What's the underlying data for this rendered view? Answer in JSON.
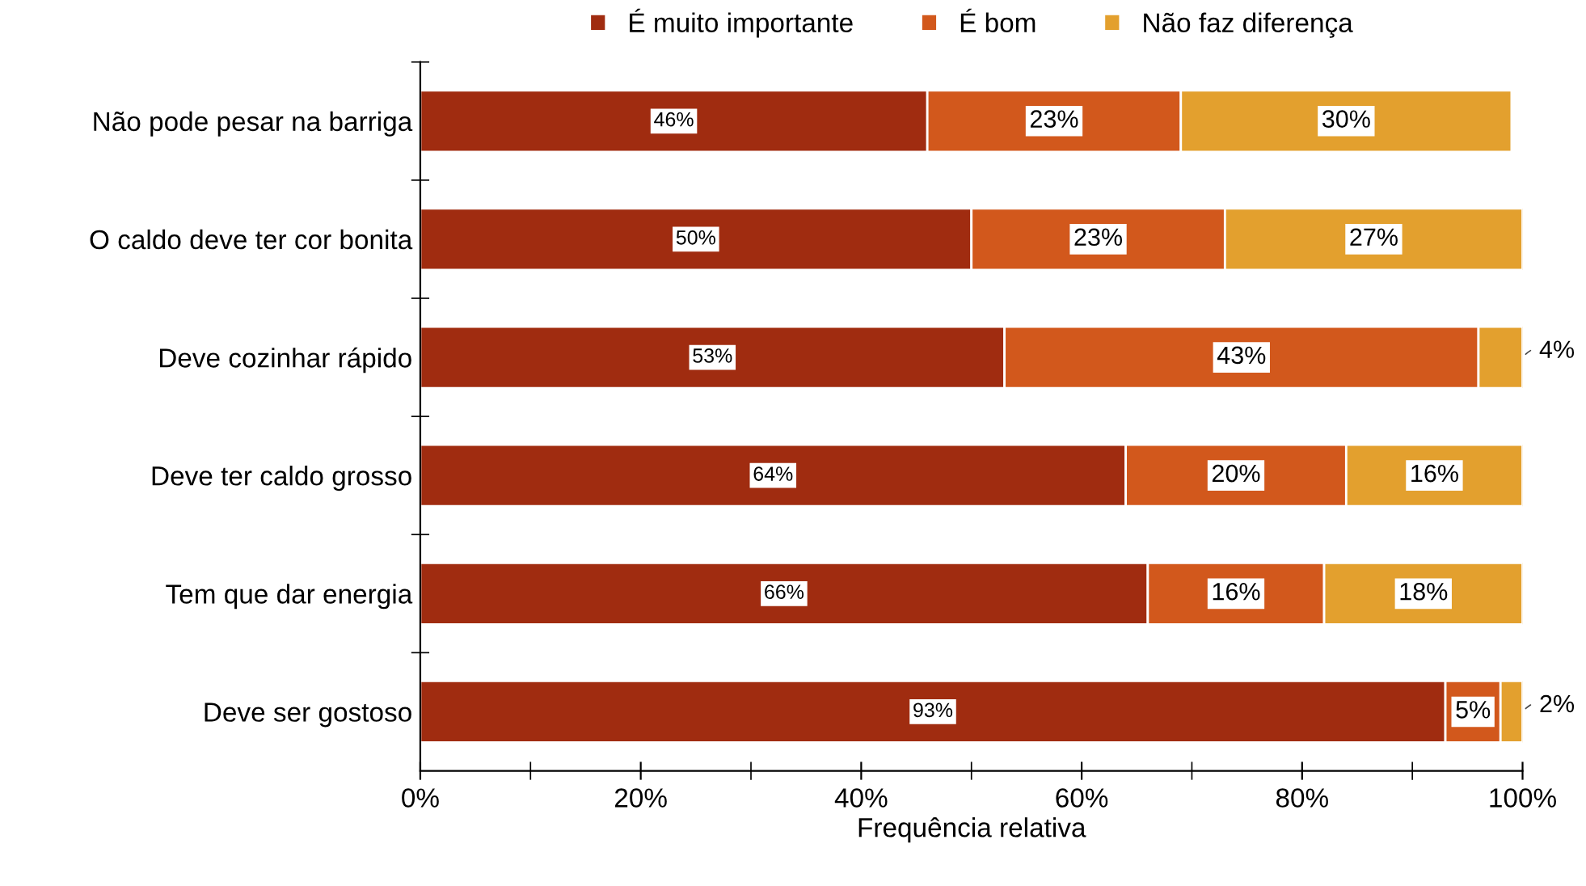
{
  "chart_data": {
    "type": "bar",
    "orientation": "horizontal",
    "stacked": true,
    "xlabel": "Frequência relativa",
    "categories": [
      "Não pode pesar na barriga",
      "O caldo deve ter cor bonita",
      "Deve cozinhar rápido",
      "Deve ter caldo grosso",
      "Tem que dar energia",
      "Deve ser gostoso"
    ],
    "series": [
      {
        "name": "É muito importante",
        "color": "#a02c10",
        "values": [
          46,
          50,
          53,
          64,
          66,
          93
        ],
        "value_labels": [
          "46%",
          "50%",
          "53%",
          "64%",
          "66%",
          "93%"
        ]
      },
      {
        "name": "É bom",
        "color": "#d2581c",
        "values": [
          23,
          23,
          43,
          20,
          16,
          5
        ],
        "value_labels": [
          "23%",
          "23%",
          "43%",
          "20%",
          "16%",
          "5%"
        ]
      },
      {
        "name": "Não faz diferença",
        "color": "#e3a02e",
        "values": [
          30,
          27,
          4,
          16,
          18,
          2
        ],
        "value_labels": [
          "30%",
          "27%",
          "4%",
          "16%",
          "18%",
          "2%"
        ]
      }
    ],
    "xlim": [
      0,
      100
    ],
    "xticks": [
      {
        "value": 0,
        "label": "0%"
      },
      {
        "value": 20,
        "label": "20%"
      },
      {
        "value": 40,
        "label": "40%"
      },
      {
        "value": 60,
        "label": "60%"
      },
      {
        "value": 80,
        "label": "80%"
      },
      {
        "value": 100,
        "label": "100%"
      }
    ],
    "legend": "top",
    "grid": false
  }
}
